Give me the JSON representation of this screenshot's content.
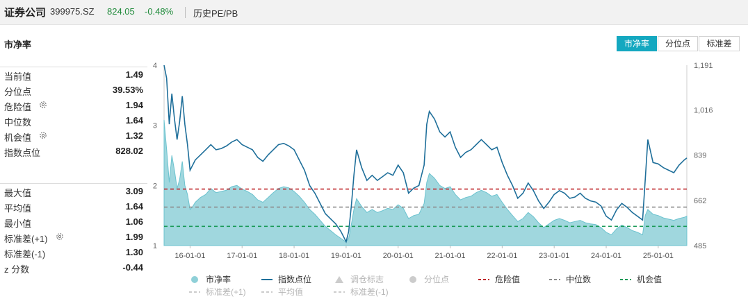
{
  "header": {
    "name": "证券公司",
    "code": "399975.SZ",
    "price": "824.05",
    "change": "-0.48%",
    "link": "历史PE/PB"
  },
  "section_title": "市净率",
  "toggles": [
    "市净率",
    "分位点",
    "标准差"
  ],
  "stats_top": [
    {
      "label": "当前值",
      "value": "1.49",
      "gear": false
    },
    {
      "label": "分位点",
      "value": "39.53%",
      "gear": false
    },
    {
      "label": "危险值",
      "value": "1.94",
      "gear": true
    },
    {
      "label": "中位数",
      "value": "1.64",
      "gear": false
    },
    {
      "label": "机会值",
      "value": "1.32",
      "gear": true
    },
    {
      "label": "指数点位",
      "value": "828.02",
      "gear": false
    }
  ],
  "stats_bottom": [
    {
      "label": "最大值",
      "value": "3.09",
      "gear": false
    },
    {
      "label": "平均值",
      "value": "1.64",
      "gear": false
    },
    {
      "label": "最小值",
      "value": "1.06",
      "gear": false
    },
    {
      "label": "标准差(+1)",
      "value": "1.99",
      "gear": true
    },
    {
      "label": "标准差(-1)",
      "value": "1.30",
      "gear": false
    },
    {
      "label": "z 分数",
      "value": "-0.44",
      "gear": false
    }
  ],
  "colors": {
    "accent": "#14a8c0",
    "area": "#8fd0d8",
    "area_stroke": "#6cc3cf",
    "index_line": "#1f6f9a",
    "danger": "#c0282d",
    "median": "#8c8c8c",
    "opportunity": "#1a9a58",
    "up_down": "#1f8a3a"
  },
  "chart_data": {
    "type": "area+line",
    "x_start": 2015.5,
    "x_end": 2025.55,
    "x_ticks": [
      {
        "label": "16-01-01",
        "year": 2016.0
      },
      {
        "label": "17-01-01",
        "year": 2017.0
      },
      {
        "label": "18-01-01",
        "year": 2018.0
      },
      {
        "label": "19-01-01",
        "year": 2019.0
      },
      {
        "label": "20-01-01",
        "year": 2020.0
      },
      {
        "label": "21-01-01",
        "year": 2021.0
      },
      {
        "label": "22-01-01",
        "year": 2022.0
      },
      {
        "label": "23-01-01",
        "year": 2023.0
      },
      {
        "label": "24-01-01",
        "year": 2024.0
      },
      {
        "label": "25-01-01",
        "year": 2025.0
      }
    ],
    "left_axis": {
      "ticks": [
        "1",
        "2",
        "3",
        "4"
      ],
      "ylim": [
        1,
        4
      ]
    },
    "right_axis": {
      "ticks": [
        "485",
        "662",
        "839",
        "1,016",
        "1,191"
      ],
      "ylim": [
        485,
        1191
      ]
    },
    "reference_lines": [
      {
        "name": "危险值",
        "value": 1.94
      },
      {
        "name": "中位数",
        "value": 1.64
      },
      {
        "name": "机会值",
        "value": 1.32
      }
    ],
    "series": [
      {
        "name": "市净率",
        "type": "area",
        "points": [
          [
            2015.5,
            3.09
          ],
          [
            2015.55,
            2.6
          ],
          [
            2015.6,
            2.05
          ],
          [
            2015.65,
            2.5
          ],
          [
            2015.7,
            2.25
          ],
          [
            2015.75,
            1.95
          ],
          [
            2015.8,
            2.1
          ],
          [
            2015.85,
            2.4
          ],
          [
            2015.9,
            2.0
          ],
          [
            2015.95,
            1.85
          ],
          [
            2016.0,
            1.6
          ],
          [
            2016.05,
            1.65
          ],
          [
            2016.1,
            1.72
          ],
          [
            2016.2,
            1.8
          ],
          [
            2016.3,
            1.85
          ],
          [
            2016.4,
            1.95
          ],
          [
            2016.5,
            1.88
          ],
          [
            2016.6,
            1.9
          ],
          [
            2016.7,
            1.92
          ],
          [
            2016.8,
            1.98
          ],
          [
            2016.9,
            2.0
          ],
          [
            2017.0,
            1.94
          ],
          [
            2017.1,
            1.9
          ],
          [
            2017.2,
            1.85
          ],
          [
            2017.3,
            1.76
          ],
          [
            2017.4,
            1.72
          ],
          [
            2017.5,
            1.8
          ],
          [
            2017.6,
            1.88
          ],
          [
            2017.7,
            1.95
          ],
          [
            2017.8,
            1.98
          ],
          [
            2017.9,
            1.96
          ],
          [
            2018.0,
            1.9
          ],
          [
            2018.1,
            1.82
          ],
          [
            2018.2,
            1.72
          ],
          [
            2018.3,
            1.6
          ],
          [
            2018.4,
            1.52
          ],
          [
            2018.5,
            1.42
          ],
          [
            2018.6,
            1.32
          ],
          [
            2018.7,
            1.25
          ],
          [
            2018.8,
            1.18
          ],
          [
            2018.9,
            1.12
          ],
          [
            2019.0,
            1.06
          ],
          [
            2019.05,
            1.12
          ],
          [
            2019.1,
            1.35
          ],
          [
            2019.15,
            1.6
          ],
          [
            2019.2,
            1.78
          ],
          [
            2019.3,
            1.65
          ],
          [
            2019.4,
            1.55
          ],
          [
            2019.5,
            1.6
          ],
          [
            2019.6,
            1.55
          ],
          [
            2019.7,
            1.58
          ],
          [
            2019.8,
            1.62
          ],
          [
            2019.9,
            1.6
          ],
          [
            2020.0,
            1.68
          ],
          [
            2020.1,
            1.62
          ],
          [
            2020.2,
            1.45
          ],
          [
            2020.3,
            1.5
          ],
          [
            2020.4,
            1.52
          ],
          [
            2020.5,
            1.7
          ],
          [
            2020.55,
            2.05
          ],
          [
            2020.6,
            2.2
          ],
          [
            2020.7,
            2.12
          ],
          [
            2020.8,
            2.0
          ],
          [
            2020.9,
            1.95
          ],
          [
            2021.0,
            1.98
          ],
          [
            2021.1,
            1.85
          ],
          [
            2021.2,
            1.76
          ],
          [
            2021.3,
            1.8
          ],
          [
            2021.4,
            1.82
          ],
          [
            2021.5,
            1.88
          ],
          [
            2021.6,
            1.92
          ],
          [
            2021.7,
            1.88
          ],
          [
            2021.8,
            1.82
          ],
          [
            2021.9,
            1.85
          ],
          [
            2022.0,
            1.72
          ],
          [
            2022.1,
            1.6
          ],
          [
            2022.2,
            1.5
          ],
          [
            2022.3,
            1.4
          ],
          [
            2022.4,
            1.45
          ],
          [
            2022.5,
            1.55
          ],
          [
            2022.6,
            1.48
          ],
          [
            2022.7,
            1.38
          ],
          [
            2022.8,
            1.3
          ],
          [
            2022.9,
            1.36
          ],
          [
            2023.0,
            1.42
          ],
          [
            2023.1,
            1.45
          ],
          [
            2023.2,
            1.42
          ],
          [
            2023.3,
            1.38
          ],
          [
            2023.4,
            1.4
          ],
          [
            2023.5,
            1.42
          ],
          [
            2023.6,
            1.38
          ],
          [
            2023.7,
            1.36
          ],
          [
            2023.8,
            1.35
          ],
          [
            2023.9,
            1.3
          ],
          [
            2024.0,
            1.22
          ],
          [
            2024.1,
            1.18
          ],
          [
            2024.2,
            1.28
          ],
          [
            2024.3,
            1.34
          ],
          [
            2024.4,
            1.3
          ],
          [
            2024.5,
            1.25
          ],
          [
            2024.6,
            1.22
          ],
          [
            2024.7,
            1.18
          ],
          [
            2024.75,
            1.5
          ],
          [
            2024.8,
            1.6
          ],
          [
            2024.9,
            1.52
          ],
          [
            2025.0,
            1.5
          ],
          [
            2025.1,
            1.46
          ],
          [
            2025.2,
            1.44
          ],
          [
            2025.3,
            1.42
          ],
          [
            2025.4,
            1.45
          ],
          [
            2025.5,
            1.47
          ],
          [
            2025.55,
            1.49
          ]
        ]
      },
      {
        "name": "指数点位",
        "type": "line",
        "axis": "right",
        "points": [
          [
            2015.5,
            1191
          ],
          [
            2015.55,
            1140
          ],
          [
            2015.6,
            960
          ],
          [
            2015.65,
            1080
          ],
          [
            2015.7,
            980
          ],
          [
            2015.75,
            900
          ],
          [
            2015.8,
            970
          ],
          [
            2015.85,
            1070
          ],
          [
            2015.9,
            960
          ],
          [
            2015.95,
            880
          ],
          [
            2016.0,
            780
          ],
          [
            2016.05,
            800
          ],
          [
            2016.1,
            820
          ],
          [
            2016.2,
            840
          ],
          [
            2016.3,
            860
          ],
          [
            2016.4,
            880
          ],
          [
            2016.5,
            860
          ],
          [
            2016.6,
            865
          ],
          [
            2016.7,
            875
          ],
          [
            2016.8,
            890
          ],
          [
            2016.9,
            900
          ],
          [
            2017.0,
            880
          ],
          [
            2017.1,
            870
          ],
          [
            2017.2,
            860
          ],
          [
            2017.3,
            830
          ],
          [
            2017.4,
            815
          ],
          [
            2017.5,
            840
          ],
          [
            2017.6,
            860
          ],
          [
            2017.7,
            880
          ],
          [
            2017.8,
            885
          ],
          [
            2017.9,
            875
          ],
          [
            2018.0,
            860
          ],
          [
            2018.1,
            820
          ],
          [
            2018.2,
            780
          ],
          [
            2018.3,
            720
          ],
          [
            2018.4,
            690
          ],
          [
            2018.5,
            650
          ],
          [
            2018.6,
            610
          ],
          [
            2018.7,
            590
          ],
          [
            2018.8,
            570
          ],
          [
            2018.9,
            540
          ],
          [
            2019.0,
            500
          ],
          [
            2019.05,
            540
          ],
          [
            2019.1,
            640
          ],
          [
            2019.15,
            760
          ],
          [
            2019.2,
            860
          ],
          [
            2019.3,
            790
          ],
          [
            2019.4,
            740
          ],
          [
            2019.5,
            760
          ],
          [
            2019.6,
            740
          ],
          [
            2019.7,
            755
          ],
          [
            2019.8,
            770
          ],
          [
            2019.9,
            760
          ],
          [
            2020.0,
            800
          ],
          [
            2020.1,
            770
          ],
          [
            2020.2,
            690
          ],
          [
            2020.3,
            710
          ],
          [
            2020.4,
            720
          ],
          [
            2020.5,
            800
          ],
          [
            2020.55,
            960
          ],
          [
            2020.6,
            1010
          ],
          [
            2020.7,
            980
          ],
          [
            2020.8,
            930
          ],
          [
            2020.9,
            910
          ],
          [
            2021.0,
            930
          ],
          [
            2021.1,
            870
          ],
          [
            2021.2,
            830
          ],
          [
            2021.3,
            850
          ],
          [
            2021.4,
            860
          ],
          [
            2021.5,
            880
          ],
          [
            2021.6,
            900
          ],
          [
            2021.7,
            880
          ],
          [
            2021.8,
            860
          ],
          [
            2021.9,
            870
          ],
          [
            2022.0,
            810
          ],
          [
            2022.1,
            760
          ],
          [
            2022.2,
            720
          ],
          [
            2022.3,
            670
          ],
          [
            2022.4,
            690
          ],
          [
            2022.5,
            730
          ],
          [
            2022.6,
            700
          ],
          [
            2022.7,
            660
          ],
          [
            2022.8,
            630
          ],
          [
            2022.9,
            655
          ],
          [
            2023.0,
            685
          ],
          [
            2023.1,
            700
          ],
          [
            2023.2,
            690
          ],
          [
            2023.3,
            670
          ],
          [
            2023.4,
            675
          ],
          [
            2023.5,
            690
          ],
          [
            2023.6,
            670
          ],
          [
            2023.7,
            660
          ],
          [
            2023.8,
            655
          ],
          [
            2023.9,
            640
          ],
          [
            2024.0,
            600
          ],
          [
            2024.1,
            585
          ],
          [
            2024.2,
            625
          ],
          [
            2024.3,
            650
          ],
          [
            2024.4,
            635
          ],
          [
            2024.5,
            615
          ],
          [
            2024.6,
            600
          ],
          [
            2024.7,
            585
          ],
          [
            2024.75,
            740
          ],
          [
            2024.8,
            900
          ],
          [
            2024.9,
            810
          ],
          [
            2025.0,
            805
          ],
          [
            2025.1,
            790
          ],
          [
            2025.2,
            780
          ],
          [
            2025.3,
            770
          ],
          [
            2025.4,
            800
          ],
          [
            2025.5,
            820
          ],
          [
            2025.55,
            828
          ]
        ]
      }
    ],
    "legend": [
      {
        "label": "市净率",
        "kind": "dot",
        "dim": false
      },
      {
        "label": "指数点位",
        "kind": "line",
        "dim": false
      },
      {
        "label": "调仓标志",
        "kind": "triangle",
        "dim": true
      },
      {
        "label": "分位点",
        "kind": "dot",
        "dim": true
      },
      {
        "label": "危险值",
        "kind": "dash",
        "dim": false
      },
      {
        "label": "中位数",
        "kind": "dash",
        "dim": false
      },
      {
        "label": "机会值",
        "kind": "dash",
        "dim": false
      },
      {
        "label": "标准差(+1)",
        "kind": "dash",
        "dim": true
      },
      {
        "label": "平均值",
        "kind": "dash",
        "dim": true
      },
      {
        "label": "标准差(-1)",
        "kind": "dash",
        "dim": true
      }
    ]
  }
}
